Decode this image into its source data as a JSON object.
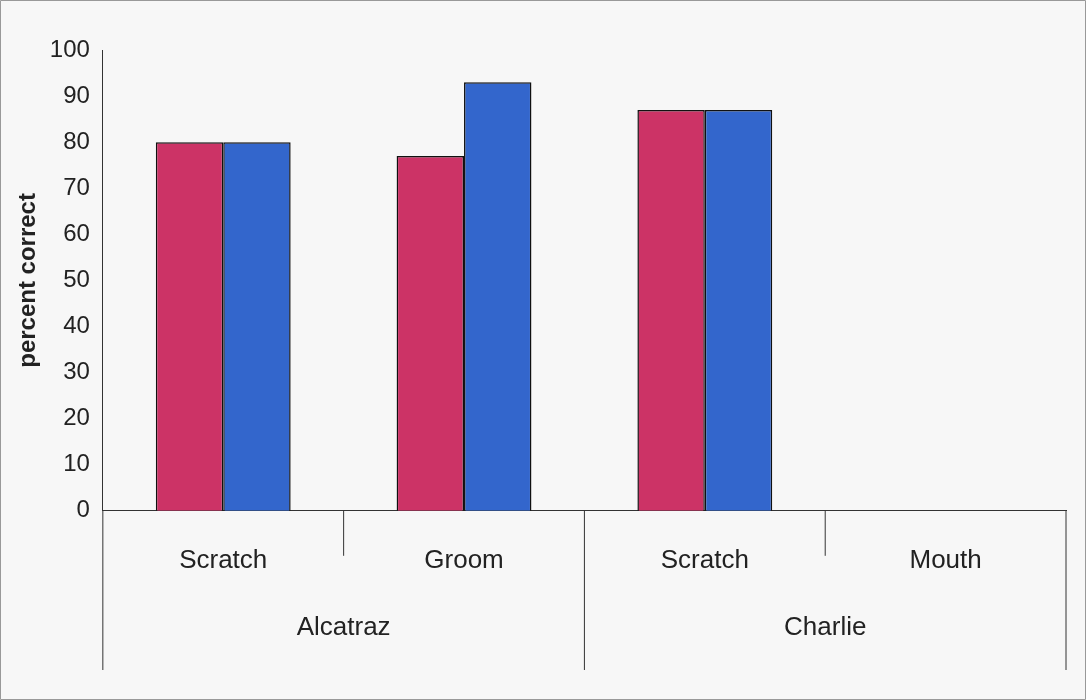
{
  "chart_data": {
    "type": "bar",
    "ylabel": "percent correct",
    "categories": [
      "Scratch",
      "Groom",
      "Scratch",
      "Mouth"
    ],
    "series": [
      {
        "color": "#cc3366",
        "values": [
          80,
          77,
          87,
          null
        ]
      },
      {
        "color": "#3366cc",
        "values": [
          80,
          93,
          87,
          null
        ]
      }
    ],
    "annotations": [
      "Alcatraz",
      "Charlie"
    ],
    "ylim": [
      0,
      100
    ],
    "yticks": [
      0,
      10,
      20,
      30,
      40,
      50,
      60,
      70,
      80,
      90,
      100
    ],
    "grid": false,
    "legend": false
  }
}
